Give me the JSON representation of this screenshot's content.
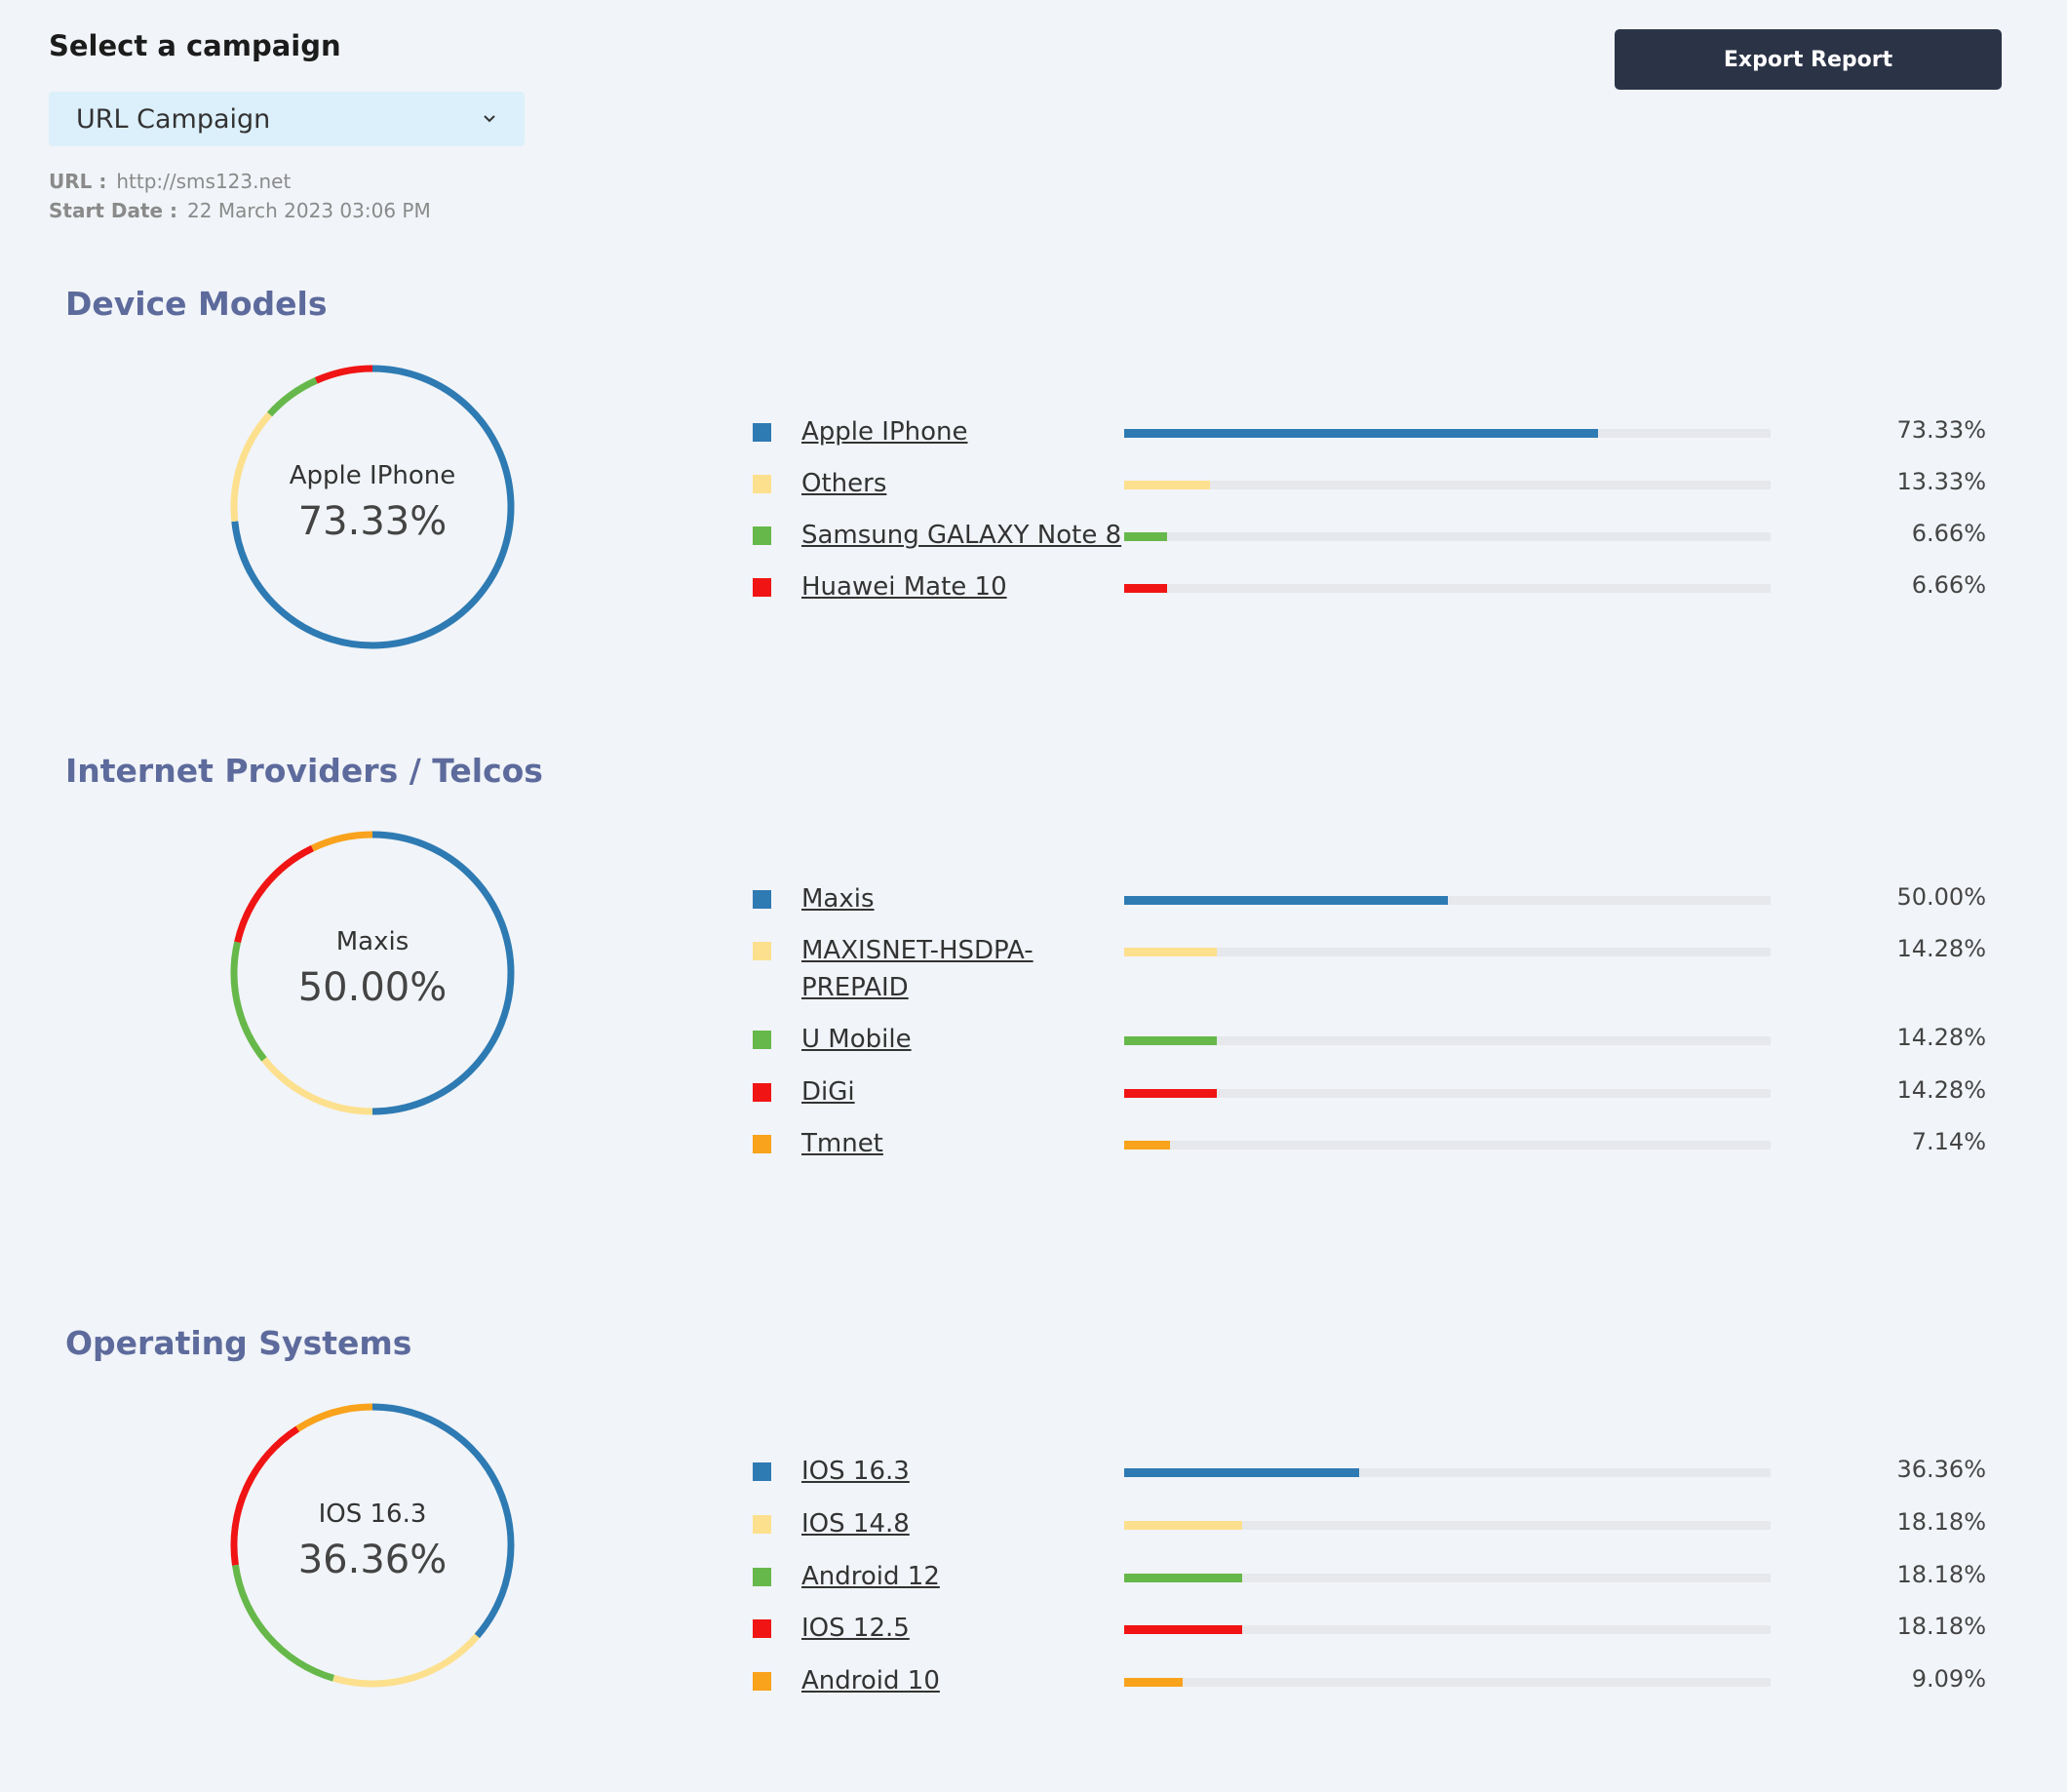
{
  "header": {
    "campaign_label": "Select a campaign",
    "selected_campaign": "URL Campaign",
    "url_key": "URL :",
    "url_value": "http://sms123.net",
    "start_date_key": "Start Date :",
    "start_date_value": "22 March 2023 03:06 PM",
    "export_label": "Export Report"
  },
  "sections": [
    {
      "title": "Device Models",
      "center_label": "Apple IPhone",
      "center_value": "73.33%",
      "items": [
        {
          "label": "Apple IPhone",
          "percent": "73.33%",
          "value": 73.33,
          "color": "#2e7ab3"
        },
        {
          "label": "Others",
          "percent": "13.33%",
          "value": 13.33,
          "color": "#fde08e"
        },
        {
          "label": "Samsung GALAXY Note 8",
          "percent": "6.66%",
          "value": 6.66,
          "color": "#66b84a"
        },
        {
          "label": "Huawei Mate 10",
          "percent": "6.66%",
          "value": 6.66,
          "color": "#f01414"
        }
      ]
    },
    {
      "title": "Internet Providers / Telcos",
      "center_label": "Maxis",
      "center_value": "50.00%",
      "items": [
        {
          "label": "Maxis",
          "percent": "50.00%",
          "value": 50.0,
          "color": "#2e7ab3"
        },
        {
          "label": "MAXISNET-HSDPA-PREPAID",
          "percent": "14.28%",
          "value": 14.28,
          "color": "#fde08e"
        },
        {
          "label": "U Mobile",
          "percent": "14.28%",
          "value": 14.28,
          "color": "#66b84a"
        },
        {
          "label": "DiGi",
          "percent": "14.28%",
          "value": 14.28,
          "color": "#f01414"
        },
        {
          "label": "Tmnet",
          "percent": "7.14%",
          "value": 7.14,
          "color": "#f9a21b"
        }
      ]
    },
    {
      "title": "Operating Systems",
      "center_label": "IOS 16.3",
      "center_value": "36.36%",
      "items": [
        {
          "label": "IOS 16.3",
          "percent": "36.36%",
          "value": 36.36,
          "color": "#2e7ab3"
        },
        {
          "label": "IOS 14.8",
          "percent": "18.18%",
          "value": 18.18,
          "color": "#fde08e"
        },
        {
          "label": "Android 12",
          "percent": "18.18%",
          "value": 18.18,
          "color": "#66b84a"
        },
        {
          "label": "IOS 12.5",
          "percent": "18.18%",
          "value": 18.18,
          "color": "#f01414"
        },
        {
          "label": "Android 10",
          "percent": "9.09%",
          "value": 9.09,
          "color": "#f9a21b"
        }
      ]
    }
  ]
}
